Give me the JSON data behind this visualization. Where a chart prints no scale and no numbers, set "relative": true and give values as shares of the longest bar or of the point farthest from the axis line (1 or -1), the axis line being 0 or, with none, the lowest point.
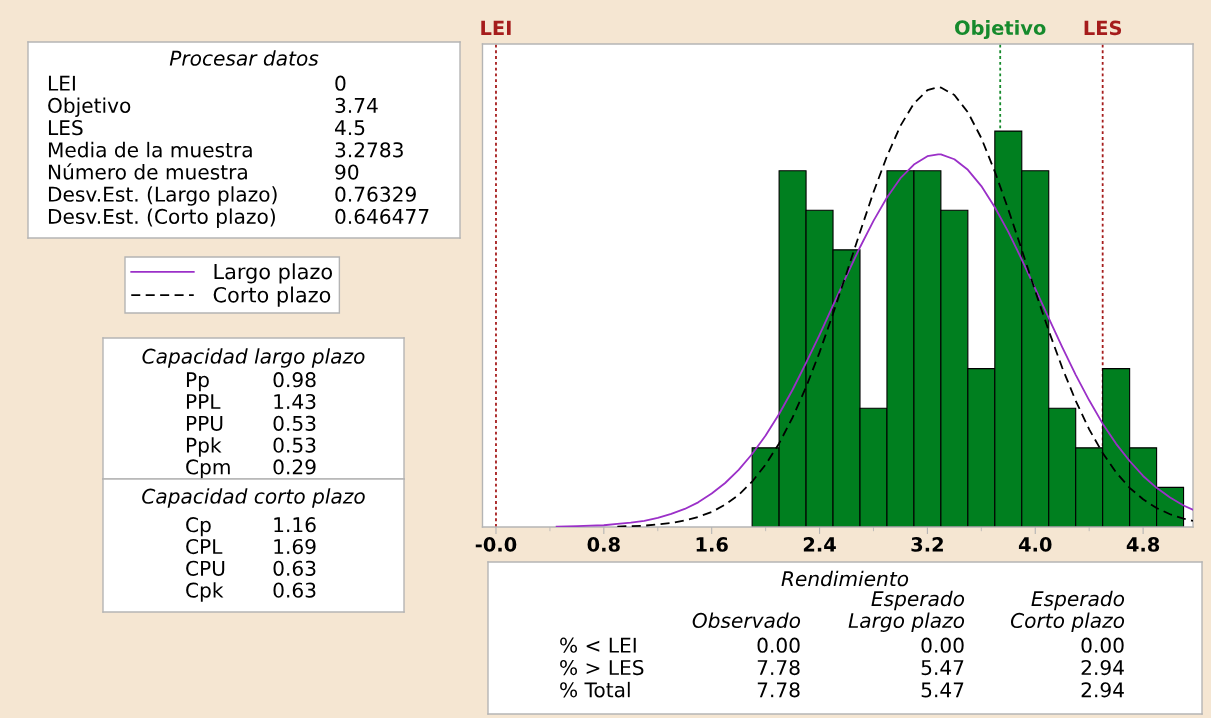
{
  "chart_data": [
    {
      "type": "histogram",
      "bins": [
        1.9,
        2.1,
        2.3,
        2.5,
        2.7,
        2.9,
        3.1,
        3.3,
        3.5,
        3.7,
        3.9,
        4.1,
        4.3,
        4.5,
        4.7,
        4.9,
        5.1
      ],
      "values": [
        0.18,
        0.81,
        0.72,
        0.63,
        0.27,
        0.81,
        0.81,
        0.72,
        0.36,
        0.9,
        0.81,
        0.27,
        0.18,
        0.36,
        0.18,
        0.09
      ],
      "color": "#007f1f",
      "relative": true,
      "series": [
        {
          "type": "line",
          "name": "Largo plazo",
          "color": "#9b30c8",
          "line_style": "solid",
          "x": [
            0.45,
            0.6,
            0.7,
            0.8,
            0.9,
            1.0,
            1.1,
            1.2,
            1.3,
            1.4,
            1.5,
            1.6,
            1.7,
            1.8,
            1.9,
            2.0,
            2.1,
            2.2,
            2.3,
            2.4,
            2.5,
            2.6,
            2.7,
            2.8,
            2.9,
            3.0,
            3.1,
            3.2,
            3.28,
            3.3,
            3.4,
            3.5,
            3.6,
            3.7,
            3.8,
            3.9,
            4.0,
            4.1,
            4.2,
            4.3,
            4.4,
            4.5,
            4.6,
            4.7,
            4.8,
            4.9,
            5.0,
            5.1,
            5.17
          ],
          "values": [
            0.001,
            0.002,
            0.003,
            0.004,
            0.007,
            0.01,
            0.014,
            0.021,
            0.03,
            0.041,
            0.056,
            0.076,
            0.1,
            0.13,
            0.166,
            0.208,
            0.257,
            0.312,
            0.373,
            0.437,
            0.504,
            0.571,
            0.636,
            0.696,
            0.749,
            0.793,
            0.824,
            0.843,
            0.847,
            0.847,
            0.836,
            0.812,
            0.775,
            0.727,
            0.671,
            0.608,
            0.542,
            0.475,
            0.409,
            0.346,
            0.288,
            0.235,
            0.189,
            0.15,
            0.116,
            0.089,
            0.067,
            0.049,
            0.039
          ]
        },
        {
          "type": "line",
          "name": "Corto plazo",
          "color": "#000000",
          "line_style": "dashed",
          "x": [
            0.9,
            1.0,
            1.1,
            1.2,
            1.3,
            1.4,
            1.5,
            1.6,
            1.7,
            1.8,
            1.9,
            2.0,
            2.1,
            2.2,
            2.3,
            2.4,
            2.5,
            2.6,
            2.7,
            2.8,
            2.9,
            3.0,
            3.1,
            3.2,
            3.28,
            3.3,
            3.4,
            3.5,
            3.6,
            3.7,
            3.8,
            3.9,
            4.0,
            4.1,
            4.2,
            4.3,
            4.4,
            4.5,
            4.6,
            4.7,
            4.8,
            4.9,
            5.0,
            5.1,
            5.17
          ],
          "values": [
            0.001,
            0.002,
            0.003,
            0.006,
            0.009,
            0.015,
            0.023,
            0.034,
            0.051,
            0.073,
            0.103,
            0.142,
            0.19,
            0.249,
            0.318,
            0.397,
            0.485,
            0.577,
            0.67,
            0.761,
            0.843,
            0.912,
            0.963,
            0.993,
            1.0,
            0.999,
            0.982,
            0.943,
            0.884,
            0.808,
            0.722,
            0.63,
            0.536,
            0.446,
            0.362,
            0.287,
            0.222,
            0.168,
            0.124,
            0.089,
            0.063,
            0.043,
            0.029,
            0.019,
            0.014
          ]
        }
      ],
      "xlim": [
        -0.1,
        5.17
      ],
      "xticks": [
        {
          "value": 0,
          "label": "-0.0"
        },
        {
          "value": 0.4,
          "label": null
        },
        0.8,
        {
          "value": 1.2,
          "label": null
        },
        1.6,
        {
          "value": 2.0,
          "label": null
        },
        2.4,
        {
          "value": 2.8,
          "label": null
        },
        3.2,
        {
          "value": 3.6,
          "label": null
        },
        {
          "value": 4.0,
          "label": "4.0"
        },
        {
          "value": 4.4,
          "label": null
        },
        4.8
      ],
      "ref_lines": [
        {
          "axis": "x",
          "value": 0,
          "label": "LEI",
          "color": "#a51c1c",
          "line_style": "dotted"
        },
        {
          "axis": "x",
          "value": 3.74,
          "label": "Objetivo",
          "color": "#168a2c",
          "line_style": "dotted"
        },
        {
          "axis": "x",
          "value": 4.5,
          "label": "LES",
          "color": "#a51c1c",
          "line_style": "dotted"
        }
      ],
      "legend": "left",
      "grid": false
    },
    {
      "type": "other",
      "title": "Procesar datos",
      "categories": [
        "LEI",
        "Objetivo",
        "LES",
        "Media de la muestra",
        "Número de muestra",
        "Desv.Est. (Largo plazo)",
        "Desv.Est. (Corto plazo)"
      ],
      "values": [
        0,
        3.74,
        4.5,
        3.2783,
        90,
        0.76329,
        0.646477
      ],
      "data_labels": true
    },
    {
      "type": "other",
      "title": "Capacidad largo plazo",
      "categories": [
        "Pp",
        "PPL",
        "PPU",
        "Ppk",
        "Cpm"
      ],
      "values": [
        0.98,
        1.43,
        0.53,
        0.53,
        0.29
      ],
      "data_labels": true
    },
    {
      "type": "other",
      "title": "Capacidad corto plazo",
      "categories": [
        "Cp",
        "CPL",
        "CPU",
        "Cpk"
      ],
      "values": [
        1.16,
        1.69,
        0.63,
        0.63
      ],
      "data_labels": true
    },
    {
      "type": "other",
      "title": "Rendimiento",
      "categories": [
        "% < LEI",
        "% > LES",
        "% Total"
      ],
      "series": [
        {
          "name": "Observado",
          "values": [
            0,
            7.78,
            7.78
          ],
          "value_labels": [
            "0.00",
            "7.78",
            "7.78"
          ]
        },
        {
          "name": "Esperado\nLargo plazo",
          "values": [
            0,
            5.47,
            5.47
          ],
          "value_labels": [
            "0.00",
            "5.47",
            "5.47"
          ]
        },
        {
          "name": "Esperado\nCorto plazo",
          "values": [
            0,
            2.94,
            2.94
          ],
          "value_labels": [
            "0.00",
            "2.94",
            "2.94"
          ]
        }
      ]
    }
  ]
}
